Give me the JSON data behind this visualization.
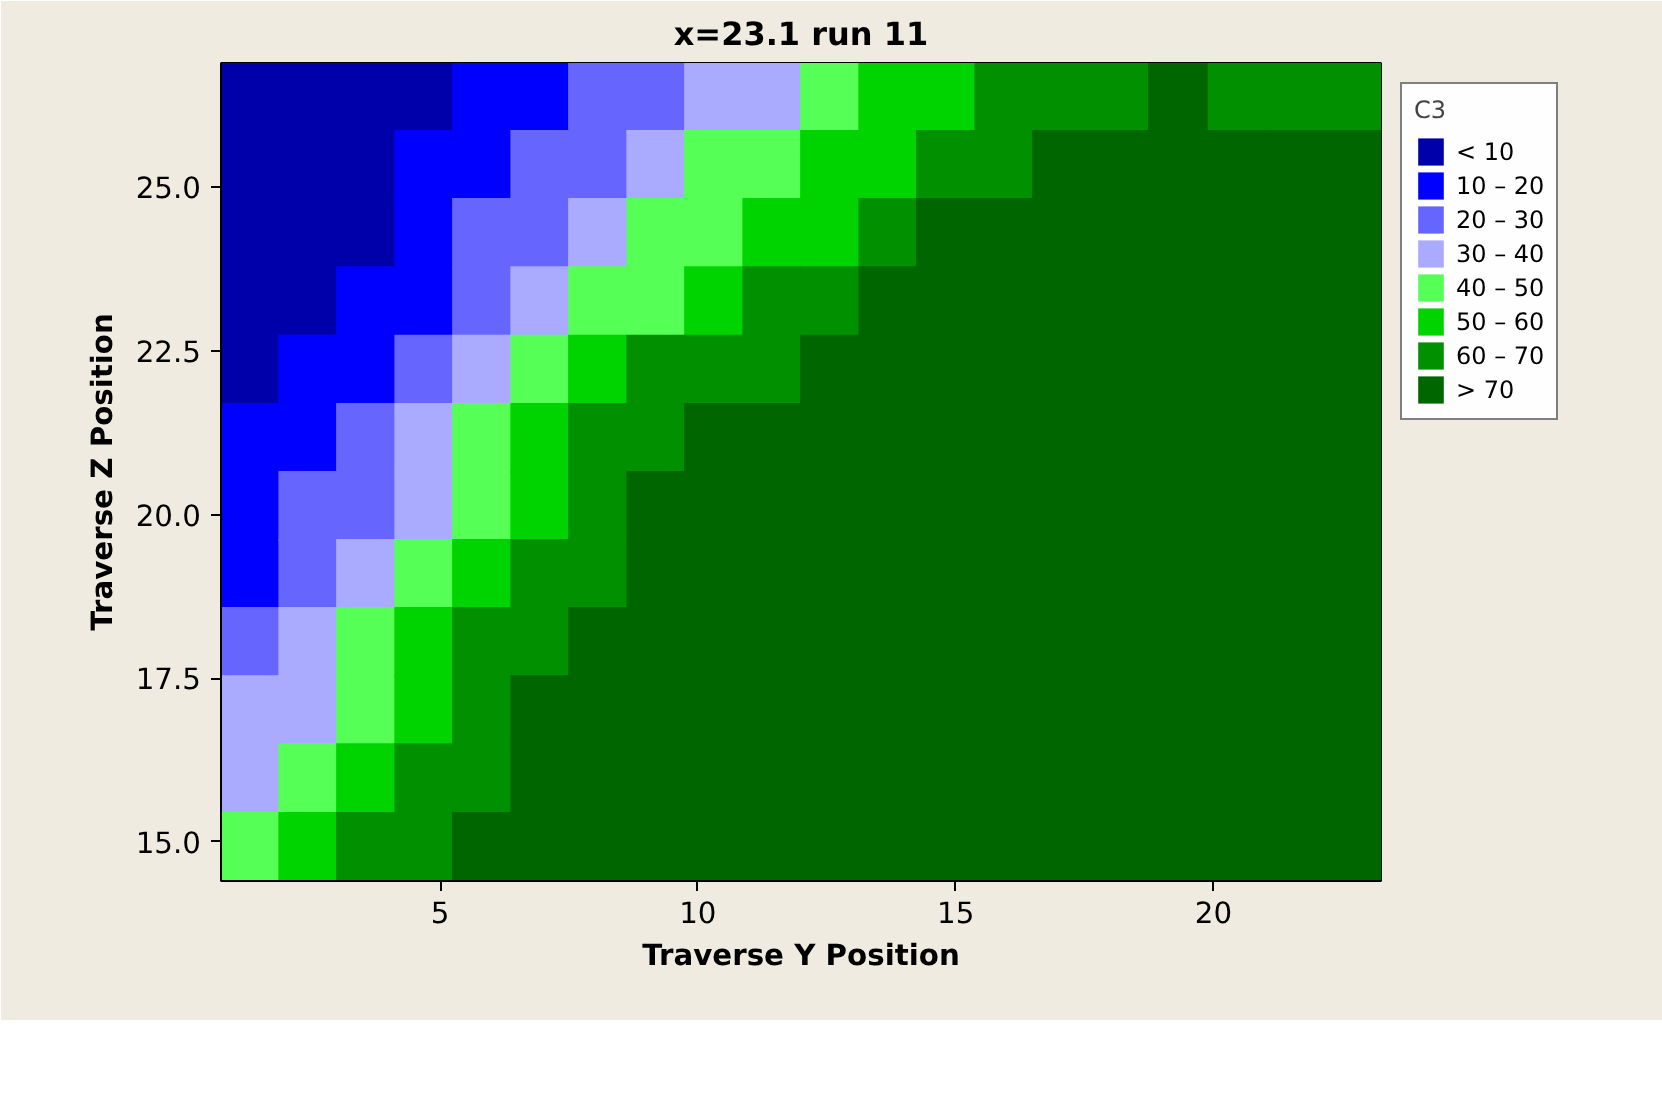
{
  "chart_data": {
    "type": "scatter",
    "marker": "square",
    "title": "x=23.1 run 11",
    "xlabel": "Traverse Y Position",
    "ylabel": "Traverse Z Position",
    "legend_title": "C3",
    "legend": "right",
    "series": [
      {
        "name": "< 10",
        "color": "#0000aa",
        "x": [
          1.31,
          2.44,
          3.56,
          4.69,
          1.31,
          2.44,
          3.56,
          1.31,
          2.44,
          3.56,
          1.31,
          2.44,
          1.31
        ],
        "values": [
          26.38,
          26.38,
          26.38,
          26.38,
          25.34,
          25.34,
          25.34,
          24.3,
          24.3,
          24.3,
          23.26,
          23.26,
          22.21
        ]
      },
      {
        "name": "10 – 20",
        "color": "#0000ff",
        "x": [
          5.81,
          6.94,
          4.69,
          5.81,
          4.69,
          3.56,
          4.69,
          2.44,
          3.56,
          1.31,
          2.44,
          1.31,
          1.31
        ],
        "values": [
          26.38,
          26.38,
          25.34,
          25.34,
          24.3,
          23.26,
          23.26,
          22.21,
          22.21,
          21.17,
          21.17,
          20.13,
          19.09
        ]
      },
      {
        "name": "20 – 30",
        "color": "#6666ff",
        "x": [
          8.06,
          9.19,
          6.94,
          8.06,
          5.81,
          6.94,
          5.81,
          4.69,
          3.56,
          2.44,
          3.56,
          2.44,
          1.31
        ],
        "values": [
          26.38,
          26.38,
          25.34,
          25.34,
          24.3,
          24.3,
          23.26,
          22.21,
          21.17,
          20.13,
          20.13,
          19.09,
          18.05
        ]
      },
      {
        "name": "30 – 40",
        "color": "#aaaaff",
        "x": [
          10.31,
          11.44,
          9.19,
          8.06,
          6.94,
          5.81,
          4.69,
          4.69,
          3.56,
          2.44,
          1.31,
          2.44,
          1.31
        ],
        "values": [
          26.38,
          26.38,
          25.34,
          24.3,
          23.26,
          22.21,
          21.17,
          20.13,
          19.09,
          18.05,
          17.01,
          17.01,
          15.97
        ]
      },
      {
        "name": "40 – 50",
        "color": "#55ff55",
        "x": [
          12.56,
          10.31,
          11.44,
          9.19,
          10.31,
          8.06,
          9.19,
          6.94,
          5.81,
          5.81,
          4.69,
          3.56,
          3.56,
          2.44,
          1.31
        ],
        "values": [
          26.38,
          25.34,
          25.34,
          24.3,
          24.3,
          23.26,
          23.26,
          22.21,
          21.17,
          20.13,
          19.09,
          18.05,
          17.01,
          15.97,
          14.92
        ]
      },
      {
        "name": "50 – 60",
        "color": "#00d400",
        "x": [
          13.69,
          14.81,
          12.56,
          13.69,
          11.44,
          12.56,
          10.31,
          8.06,
          6.94,
          6.94,
          5.81,
          4.69,
          4.69,
          3.56,
          2.44
        ],
        "values": [
          26.38,
          26.38,
          25.34,
          25.34,
          24.3,
          24.3,
          23.26,
          22.21,
          21.17,
          20.13,
          19.09,
          18.05,
          17.01,
          15.97,
          14.92
        ]
      },
      {
        "name": "60 – 70",
        "color": "#009000",
        "x": [
          15.94,
          17.06,
          18.19,
          20.44,
          21.56,
          22.69,
          14.81,
          15.94,
          13.69,
          11.44,
          12.56,
          9.19,
          10.31,
          11.44,
          8.06,
          9.19,
          8.06,
          6.94,
          8.06,
          5.81,
          6.94,
          5.81,
          4.69,
          5.81,
          3.56,
          4.69
        ],
        "values": [
          26.38,
          26.38,
          26.38,
          26.38,
          26.38,
          26.38,
          25.34,
          25.34,
          24.3,
          23.26,
          23.26,
          22.21,
          22.21,
          22.21,
          21.17,
          21.17,
          20.13,
          19.09,
          19.09,
          18.05,
          18.05,
          17.01,
          15.97,
          15.97,
          14.92,
          14.92
        ]
      },
      {
        "name": "> 70",
        "color": "#006600",
        "x": [
          19.31,
          17.06,
          18.19,
          19.31,
          20.44,
          21.56,
          22.69,
          14.81,
          15.94,
          17.06,
          18.19,
          19.31,
          20.44,
          21.56,
          22.69,
          13.69,
          14.81,
          15.94,
          17.06,
          18.19,
          19.31,
          20.44,
          21.56,
          22.69,
          12.56,
          13.69,
          14.81,
          15.94,
          17.06,
          18.19,
          19.31,
          20.44,
          21.56,
          22.69,
          10.31,
          11.44,
          12.56,
          13.69,
          14.81,
          15.94,
          17.06,
          18.19,
          19.31,
          20.44,
          21.56,
          22.69,
          9.19,
          10.31,
          11.44,
          12.56,
          13.69,
          14.81,
          15.94,
          17.06,
          18.19,
          19.31,
          20.44,
          21.56,
          22.69,
          9.19,
          10.31,
          11.44,
          12.56,
          13.69,
          14.81,
          15.94,
          17.06,
          18.19,
          19.31,
          20.44,
          21.56,
          22.69,
          8.06,
          9.19,
          10.31,
          11.44,
          12.56,
          13.69,
          14.81,
          15.94,
          17.06,
          18.19,
          19.31,
          20.44,
          21.56,
          22.69,
          6.94,
          8.06,
          9.19,
          10.31,
          11.44,
          12.56,
          13.69,
          14.81,
          15.94,
          17.06,
          18.19,
          19.31,
          20.44,
          21.56,
          22.69,
          6.94,
          8.06,
          9.19,
          10.31,
          11.44,
          12.56,
          13.69,
          14.81,
          15.94,
          17.06,
          18.19,
          19.31,
          20.44,
          21.56,
          22.69,
          5.81,
          6.94,
          8.06,
          9.19,
          10.31,
          11.44,
          12.56,
          13.69,
          14.81,
          15.94,
          17.06,
          18.19,
          19.31,
          20.44,
          21.56,
          22.69
        ],
        "values": [
          26.38,
          25.34,
          25.34,
          25.34,
          25.34,
          25.34,
          25.34,
          24.3,
          24.3,
          24.3,
          24.3,
          24.3,
          24.3,
          24.3,
          24.3,
          23.26,
          23.26,
          23.26,
          23.26,
          23.26,
          23.26,
          23.26,
          23.26,
          23.26,
          22.21,
          22.21,
          22.21,
          22.21,
          22.21,
          22.21,
          22.21,
          22.21,
          22.21,
          22.21,
          21.17,
          21.17,
          21.17,
          21.17,
          21.17,
          21.17,
          21.17,
          21.17,
          21.17,
          21.17,
          21.17,
          21.17,
          20.13,
          20.13,
          20.13,
          20.13,
          20.13,
          20.13,
          20.13,
          20.13,
          20.13,
          20.13,
          20.13,
          20.13,
          20.13,
          19.09,
          19.09,
          19.09,
          19.09,
          19.09,
          19.09,
          19.09,
          19.09,
          19.09,
          19.09,
          19.09,
          19.09,
          19.09,
          18.05,
          18.05,
          18.05,
          18.05,
          18.05,
          18.05,
          18.05,
          18.05,
          18.05,
          18.05,
          18.05,
          18.05,
          18.05,
          18.05,
          17.01,
          17.01,
          17.01,
          17.01,
          17.01,
          17.01,
          17.01,
          17.01,
          17.01,
          17.01,
          17.01,
          17.01,
          17.01,
          17.01,
          17.01,
          15.97,
          15.97,
          15.97,
          15.97,
          15.97,
          15.97,
          15.97,
          15.97,
          15.97,
          15.97,
          15.97,
          15.97,
          15.97,
          15.97,
          15.97,
          14.92,
          14.92,
          14.92,
          14.92,
          14.92,
          14.92,
          14.92,
          14.92,
          14.92,
          14.92,
          14.92,
          14.92,
          14.92,
          14.92,
          14.92,
          14.92
        ]
      }
    ],
    "xlim": [
      0.75,
      23.25
    ],
    "ylim": [
      14.4,
      26.9
    ],
    "xticks": [
      5,
      10,
      15,
      20
    ],
    "yticks": [
      {
        "value": 15,
        "label": "15.0"
      },
      {
        "value": 17.5,
        "label": "17.5"
      },
      {
        "value": 20,
        "label": "20.0"
      },
      {
        "value": 22.5,
        "label": "22.5"
      },
      {
        "value": 25,
        "label": "25.0"
      }
    ]
  }
}
